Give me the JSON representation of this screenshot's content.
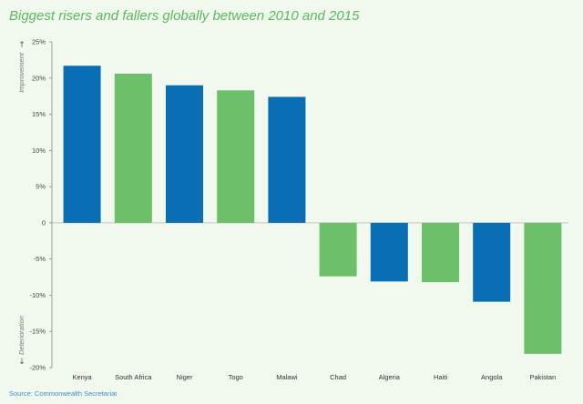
{
  "title": "Biggest risers and fallers globally between 2010 and 2015",
  "source": "Source: Commonwealth Secretariat",
  "chart_data": {
    "type": "bar",
    "categories": [
      "Kenya",
      "South Africa",
      "Niger",
      "Togo",
      "Malawi",
      "Chad",
      "Algeria",
      "Haiti",
      "Angola",
      "Pakistan"
    ],
    "values": [
      21.7,
      20.6,
      19.0,
      18.3,
      17.4,
      -7.4,
      -8.1,
      -8.2,
      -10.9,
      -18.1
    ],
    "ylim": [
      -20,
      25
    ],
    "yticks": [
      25,
      20,
      15,
      10,
      5,
      0,
      -5,
      -10,
      -15,
      -20
    ],
    "ytick_labels": [
      "25%",
      "20%",
      "15%",
      "10%",
      "5%",
      "0",
      "-5%",
      "-10%",
      "-15%",
      "-20%"
    ],
    "ylabel_top": "Improvement",
    "ylabel_bottom": "Deterioration",
    "colors": [
      "#0a6eb4",
      "#6cc06a",
      "#0a6eb4",
      "#6cc06a",
      "#0a6eb4",
      "#6cc06a",
      "#0a6eb4",
      "#6cc06a",
      "#0a6eb4",
      "#6cc06a"
    ],
    "grid": false
  }
}
